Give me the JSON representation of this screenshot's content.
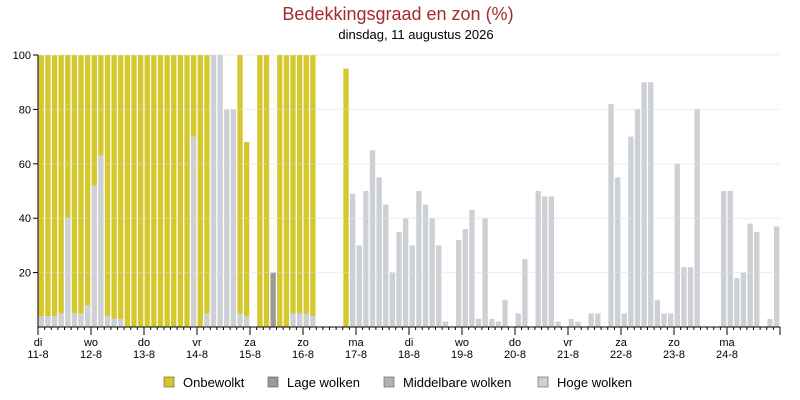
{
  "chart_data": {
    "type": "bar",
    "stacked": true,
    "title": "Bedekkingsgraad en zon (%)",
    "subtitle": "dinsdag, 11 augustus 2026",
    "ylim": [
      0,
      100
    ],
    "yticks": [
      20,
      40,
      60,
      80,
      100
    ],
    "grid": true,
    "legend_position": "bottom",
    "day_labels": [
      {
        "day": "di",
        "date": "11-8"
      },
      {
        "day": "wo",
        "date": "12-8"
      },
      {
        "day": "do",
        "date": "13-8"
      },
      {
        "day": "vr",
        "date": "14-8"
      },
      {
        "day": "za",
        "date": "15-8"
      },
      {
        "day": "zo",
        "date": "16-8"
      },
      {
        "day": "ma",
        "date": "17-8"
      },
      {
        "day": "di",
        "date": "18-8"
      },
      {
        "day": "wo",
        "date": "19-8"
      },
      {
        "day": "do",
        "date": "20-8"
      },
      {
        "day": "vr",
        "date": "21-8"
      },
      {
        "day": "za",
        "date": "22-8"
      },
      {
        "day": "zo",
        "date": "23-8"
      },
      {
        "day": "ma",
        "date": "24-8"
      }
    ],
    "legend": [
      {
        "name": "Onbewolkt",
        "color": "#d4c82c"
      },
      {
        "name": "Lage wolken",
        "color": "#9a9a9e"
      },
      {
        "name": "Middelbare wolken",
        "color": "#b0b2b6"
      },
      {
        "name": "Hoge wolken",
        "color": "#cdd0d4"
      }
    ],
    "series_order": [
      "hoge",
      "middel",
      "lage",
      "onbewolkt"
    ],
    "points_per_day": 8,
    "series": [
      {
        "name": "Hoge wolken",
        "values": [
          4,
          4,
          4,
          5,
          40,
          5,
          5,
          8,
          52,
          63,
          4,
          3,
          3,
          0,
          0,
          0,
          0,
          0,
          0,
          0,
          0,
          0,
          0,
          70,
          0,
          5,
          100,
          100,
          80,
          80,
          5,
          4,
          0,
          0,
          0,
          0,
          0,
          0,
          5,
          5,
          5,
          4,
          0,
          0,
          0,
          0,
          0,
          49,
          30,
          50,
          65,
          55,
          45,
          20,
          35,
          40,
          30,
          50,
          45,
          40,
          30,
          2,
          0,
          32,
          36,
          43,
          3,
          40,
          3,
          2,
          10,
          0,
          5,
          25,
          0,
          50,
          48,
          48,
          2,
          0,
          3,
          2,
          0,
          5,
          5,
          0,
          82,
          55,
          5,
          70,
          80,
          90,
          90,
          10,
          5,
          5,
          60,
          22,
          22,
          80,
          0,
          0,
          0,
          50,
          50,
          18,
          20,
          38,
          35,
          0,
          3,
          37
        ]
      },
      {
        "name": "Middelbare wolken",
        "values": [
          0,
          0,
          0,
          0,
          0,
          0,
          0,
          0,
          0,
          0,
          0,
          0,
          0,
          0,
          0,
          0,
          0,
          0,
          0,
          0,
          0,
          0,
          0,
          0,
          0,
          0,
          0,
          0,
          0,
          0,
          0,
          0,
          0,
          0,
          0,
          0,
          0,
          0,
          0,
          0,
          0,
          0,
          0,
          0,
          0,
          0,
          0,
          0,
          0,
          0,
          0,
          0,
          0,
          0,
          0,
          0,
          0,
          0,
          0,
          0,
          0,
          0,
          0,
          0,
          0,
          0,
          0,
          0,
          0,
          0,
          0,
          0,
          0,
          0,
          0,
          0,
          0,
          0,
          0,
          0,
          0,
          0,
          0,
          0,
          0,
          0,
          0,
          0,
          0,
          0,
          0,
          0,
          0,
          0,
          0,
          0,
          0,
          0,
          0,
          0,
          0,
          0,
          0,
          0,
          0,
          0,
          0,
          0,
          0,
          0,
          0,
          0
        ]
      },
      {
        "name": "Lage wolken",
        "values": [
          0,
          0,
          0,
          0,
          0,
          0,
          0,
          0,
          0,
          0,
          0,
          0,
          0,
          0,
          0,
          0,
          0,
          0,
          0,
          0,
          0,
          0,
          0,
          0,
          0,
          0,
          0,
          0,
          0,
          0,
          0,
          0,
          0,
          0,
          0,
          20,
          0,
          0,
          0,
          0,
          0,
          0,
          0,
          0,
          0,
          0,
          0,
          0,
          0,
          0,
          0,
          0,
          0,
          0,
          0,
          0,
          0,
          0,
          0,
          0,
          0,
          0,
          0,
          0,
          0,
          0,
          0,
          0,
          0,
          0,
          0,
          0,
          0,
          0,
          0,
          0,
          0,
          0,
          0,
          0,
          0,
          0,
          0,
          0,
          0,
          0,
          0,
          0,
          0,
          0,
          0,
          0,
          0,
          0,
          0,
          0,
          0,
          0,
          0,
          0,
          0,
          0,
          0,
          0,
          0,
          0,
          0,
          0,
          0,
          0,
          0,
          0
        ]
      },
      {
        "name": "Onbewolkt",
        "values": [
          96,
          96,
          96,
          95,
          60,
          95,
          95,
          92,
          48,
          37,
          96,
          97,
          97,
          100,
          100,
          100,
          100,
          100,
          100,
          100,
          100,
          100,
          100,
          30,
          100,
          95,
          0,
          0,
          0,
          0,
          95,
          64,
          0,
          100,
          100,
          0,
          100,
          100,
          95,
          95,
          95,
          96,
          0,
          0,
          0,
          0,
          95,
          0,
          0,
          0,
          0,
          0,
          0,
          0,
          0,
          0,
          0,
          0,
          0,
          0,
          0,
          0,
          0,
          0,
          0,
          0,
          0,
          0,
          0,
          0,
          0,
          0,
          0,
          0,
          0,
          0,
          0,
          0,
          0,
          0,
          0,
          0,
          0,
          0,
          0,
          0,
          0,
          0,
          0,
          0,
          0,
          0,
          0,
          0,
          0,
          0,
          0,
          0,
          0,
          0,
          0,
          0,
          0,
          0,
          0,
          0,
          0,
          0,
          0,
          0,
          0,
          0
        ]
      }
    ]
  }
}
